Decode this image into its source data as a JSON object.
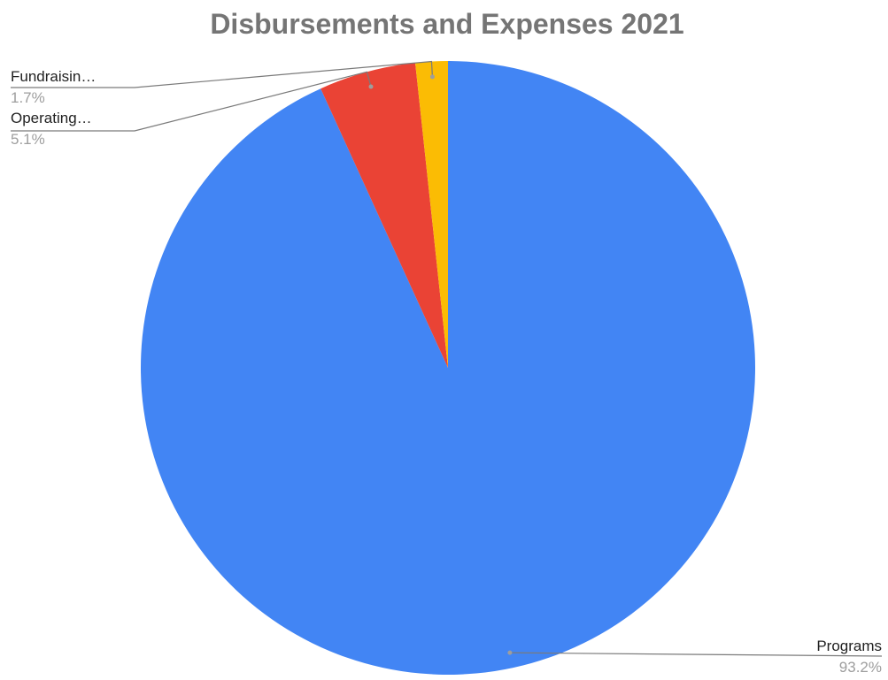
{
  "chart_data": {
    "type": "pie",
    "title": "Disbursements and Expenses 2021",
    "slices": [
      {
        "label": "Programs",
        "display_label": "Programs",
        "value": 93.2,
        "percent_label": "93.2%",
        "color": "#4285f4"
      },
      {
        "label": "Operating",
        "display_label": "Operating…",
        "value": 5.1,
        "percent_label": "5.1%",
        "color": "#ea4335"
      },
      {
        "label": "Fundraising",
        "display_label": "Fundraisin…",
        "value": 1.7,
        "percent_label": "1.7%",
        "color": "#fbbc04"
      }
    ],
    "start_angle": "12 o'clock",
    "direction": "clockwise",
    "legend": "none"
  }
}
